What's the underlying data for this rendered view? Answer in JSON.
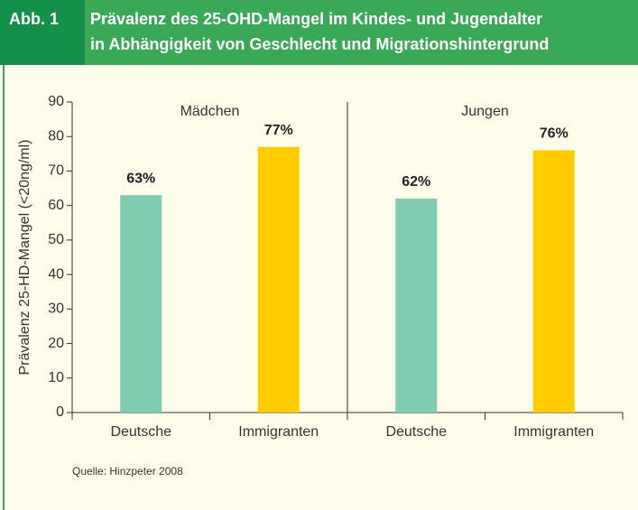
{
  "header": {
    "label": "Abb. 1",
    "title_lines": [
      "Prävalenz des 25-OHD-Mangel im Kindes- und Jugendalter",
      "in Abhängigkeit von Geschlecht und Migrationshintergrund"
    ]
  },
  "chart_data": {
    "type": "bar",
    "y_label": "Prävalenz 25-HD-Mangel (<20ng/ml)",
    "groups": [
      "Mädchen",
      "Jungen"
    ],
    "categories": [
      "Deutsche",
      "Immigranten",
      "Deutsche",
      "Immigranten"
    ],
    "values": [
      63,
      77,
      62,
      76
    ],
    "value_labels": [
      "63%",
      "77%",
      "62%",
      "76%"
    ],
    "colors": [
      "#80cbb0",
      "#ffcc00",
      "#80cbb0",
      "#ffcc00"
    ],
    "ylim": [
      0,
      90
    ],
    "yticks": [
      0,
      10,
      20,
      30,
      40,
      50,
      60,
      70,
      80,
      90
    ]
  },
  "footer": {
    "source": "Quelle: Hinzpeter 2008"
  }
}
